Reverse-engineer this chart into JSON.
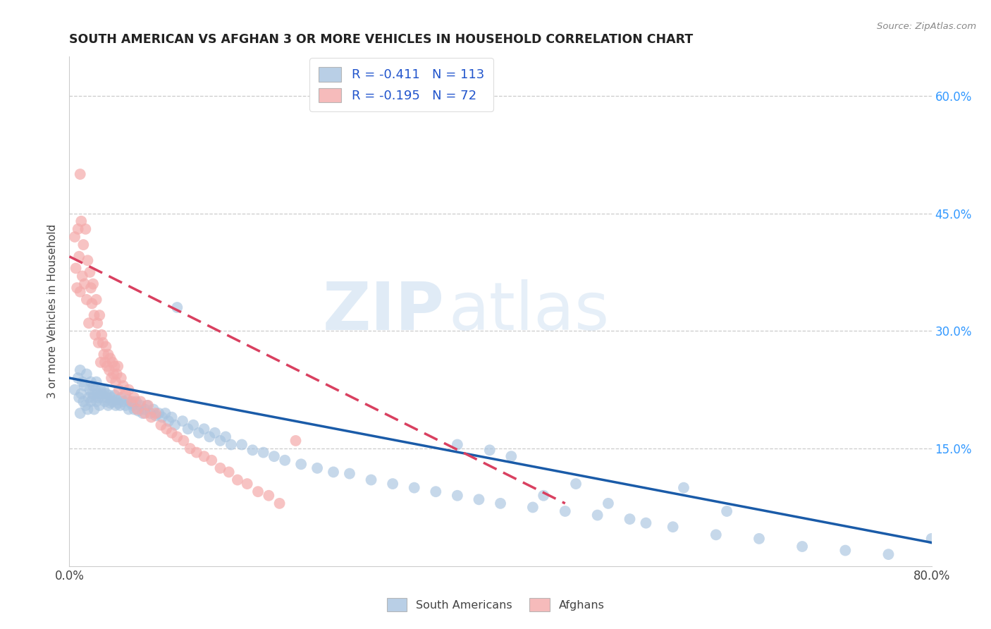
{
  "title": "SOUTH AMERICAN VS AFGHAN 3 OR MORE VEHICLES IN HOUSEHOLD CORRELATION CHART",
  "source": "Source: ZipAtlas.com",
  "ylabel": "3 or more Vehicles in Household",
  "xlim": [
    0.0,
    0.8
  ],
  "ylim": [
    0.0,
    0.65
  ],
  "blue_color": "#A8C4E0",
  "pink_color": "#F4AAAA",
  "trendline_blue": "#1A5BA8",
  "trendline_pink": "#D94060",
  "watermark_zip": "ZIP",
  "watermark_atlas": "atlas",
  "legend_line1": "R = -0.411   N = 113",
  "legend_line2": "R = -0.195   N = 72",
  "south_americans_x": [
    0.005,
    0.008,
    0.009,
    0.01,
    0.01,
    0.011,
    0.012,
    0.013,
    0.014,
    0.015,
    0.016,
    0.017,
    0.018,
    0.019,
    0.02,
    0.02,
    0.021,
    0.022,
    0.022,
    0.023,
    0.024,
    0.025,
    0.025,
    0.026,
    0.027,
    0.028,
    0.029,
    0.03,
    0.031,
    0.032,
    0.033,
    0.034,
    0.035,
    0.036,
    0.037,
    0.038,
    0.039,
    0.04,
    0.042,
    0.043,
    0.044,
    0.045,
    0.047,
    0.048,
    0.05,
    0.052,
    0.054,
    0.055,
    0.057,
    0.059,
    0.06,
    0.062,
    0.064,
    0.066,
    0.068,
    0.07,
    0.072,
    0.075,
    0.078,
    0.08,
    0.083,
    0.086,
    0.089,
    0.092,
    0.095,
    0.098,
    0.1,
    0.105,
    0.11,
    0.115,
    0.12,
    0.125,
    0.13,
    0.135,
    0.14,
    0.145,
    0.15,
    0.16,
    0.17,
    0.18,
    0.19,
    0.2,
    0.215,
    0.23,
    0.245,
    0.26,
    0.28,
    0.3,
    0.32,
    0.34,
    0.36,
    0.38,
    0.4,
    0.43,
    0.46,
    0.49,
    0.52,
    0.56,
    0.6,
    0.64,
    0.68,
    0.72,
    0.76,
    0.8,
    0.36,
    0.39,
    0.41,
    0.44,
    0.47,
    0.5,
    0.535,
    0.57,
    0.61
  ],
  "south_americans_y": [
    0.225,
    0.24,
    0.215,
    0.195,
    0.25,
    0.22,
    0.235,
    0.21,
    0.23,
    0.205,
    0.245,
    0.2,
    0.215,
    0.225,
    0.235,
    0.21,
    0.22,
    0.23,
    0.215,
    0.2,
    0.225,
    0.235,
    0.21,
    0.22,
    0.215,
    0.205,
    0.225,
    0.22,
    0.215,
    0.225,
    0.21,
    0.22,
    0.215,
    0.205,
    0.218,
    0.208,
    0.215,
    0.21,
    0.218,
    0.205,
    0.212,
    0.208,
    0.205,
    0.215,
    0.21,
    0.205,
    0.212,
    0.2,
    0.208,
    0.205,
    0.2,
    0.21,
    0.198,
    0.205,
    0.195,
    0.2,
    0.205,
    0.195,
    0.2,
    0.192,
    0.195,
    0.19,
    0.195,
    0.185,
    0.19,
    0.18,
    0.33,
    0.185,
    0.175,
    0.18,
    0.17,
    0.175,
    0.165,
    0.17,
    0.16,
    0.165,
    0.155,
    0.155,
    0.148,
    0.145,
    0.14,
    0.135,
    0.13,
    0.125,
    0.12,
    0.118,
    0.11,
    0.105,
    0.1,
    0.095,
    0.09,
    0.085,
    0.08,
    0.075,
    0.07,
    0.065,
    0.06,
    0.05,
    0.04,
    0.035,
    0.025,
    0.02,
    0.015,
    0.035,
    0.155,
    0.148,
    0.14,
    0.09,
    0.105,
    0.08,
    0.055,
    0.1,
    0.07
  ],
  "afghans_x": [
    0.005,
    0.006,
    0.007,
    0.008,
    0.009,
    0.01,
    0.01,
    0.011,
    0.012,
    0.013,
    0.014,
    0.015,
    0.016,
    0.017,
    0.018,
    0.019,
    0.02,
    0.021,
    0.022,
    0.023,
    0.024,
    0.025,
    0.026,
    0.027,
    0.028,
    0.029,
    0.03,
    0.031,
    0.032,
    0.033,
    0.034,
    0.035,
    0.036,
    0.037,
    0.038,
    0.039,
    0.04,
    0.041,
    0.042,
    0.043,
    0.044,
    0.045,
    0.046,
    0.048,
    0.05,
    0.052,
    0.055,
    0.058,
    0.06,
    0.063,
    0.066,
    0.07,
    0.073,
    0.076,
    0.08,
    0.085,
    0.09,
    0.095,
    0.1,
    0.106,
    0.112,
    0.118,
    0.125,
    0.132,
    0.14,
    0.148,
    0.156,
    0.165,
    0.175,
    0.185,
    0.195,
    0.21
  ],
  "afghans_y": [
    0.42,
    0.38,
    0.355,
    0.43,
    0.395,
    0.5,
    0.35,
    0.44,
    0.37,
    0.41,
    0.36,
    0.43,
    0.34,
    0.39,
    0.31,
    0.375,
    0.355,
    0.335,
    0.36,
    0.32,
    0.295,
    0.34,
    0.31,
    0.285,
    0.32,
    0.26,
    0.295,
    0.285,
    0.27,
    0.26,
    0.28,
    0.255,
    0.27,
    0.25,
    0.265,
    0.24,
    0.26,
    0.245,
    0.255,
    0.235,
    0.245,
    0.255,
    0.225,
    0.24,
    0.23,
    0.22,
    0.225,
    0.21,
    0.215,
    0.2,
    0.21,
    0.195,
    0.205,
    0.19,
    0.195,
    0.18,
    0.175,
    0.17,
    0.165,
    0.16,
    0.15,
    0.145,
    0.14,
    0.135,
    0.125,
    0.12,
    0.11,
    0.105,
    0.095,
    0.09,
    0.08,
    0.16
  ],
  "blue_trendline_x": [
    0.0,
    0.8
  ],
  "blue_trendline_y": [
    0.24,
    0.03
  ],
  "pink_trendline_x": [
    0.0,
    0.46
  ],
  "pink_trendline_y": [
    0.395,
    0.08
  ]
}
